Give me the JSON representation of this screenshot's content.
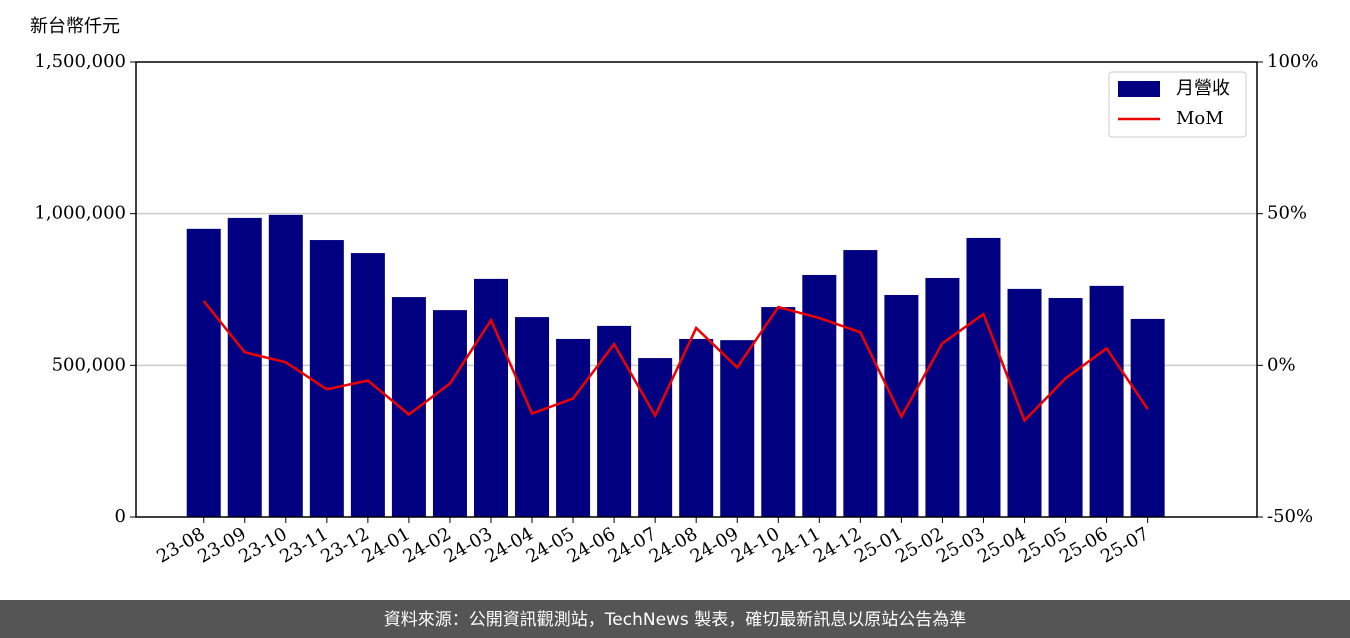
{
  "chart_data": {
    "type": "bar",
    "y_label": "新台幣仟元",
    "categories": [
      "23-08",
      "23-09",
      "23-10",
      "23-11",
      "23-12",
      "24-01",
      "24-02",
      "24-03",
      "24-04",
      "24-05",
      "24-06",
      "24-07",
      "24-08",
      "24-09",
      "24-10",
      "24-11",
      "24-12",
      "25-01",
      "25-02",
      "25-03",
      "25-04",
      "25-05",
      "25-06",
      "25-07"
    ],
    "series": [
      {
        "name": "月營收",
        "type": "bar",
        "color": "#000080",
        "values": [
          950000,
          986000,
          996000,
          913000,
          870000,
          725000,
          682000,
          785000,
          659000,
          587000,
          630000,
          524000,
          587000,
          583000,
          692000,
          798000,
          880000,
          732000,
          788000,
          920000,
          752000,
          722000,
          762000,
          653000
        ]
      },
      {
        "name": "MoM",
        "type": "line",
        "axis": "y2",
        "color": "#ee0000",
        "values": [
          21.2,
          4.3,
          1.0,
          -7.9,
          -5.0,
          -16.2,
          -6.0,
          14.9,
          -15.9,
          -10.9,
          7.0,
          -16.6,
          12.3,
          -0.7,
          19.2,
          15.6,
          10.9,
          -16.9,
          7.3,
          16.9,
          -18.2,
          -4.3,
          5.6,
          -14.4
        ]
      }
    ],
    "ylim": [
      0,
      1500000
    ],
    "yticks": [
      0,
      {
        "value": 500000,
        "label": "500,000"
      },
      {
        "value": 1000000,
        "label": "1,000,000"
      },
      {
        "value": 1500000,
        "label": "1,500,000"
      }
    ],
    "y2lim": [
      -50,
      100
    ],
    "y2ticks": [
      {
        "value": -50,
        "label": "-50%"
      },
      {
        "value": 0,
        "label": "0%"
      },
      {
        "value": 50,
        "label": "50%"
      },
      {
        "value": 100,
        "label": "100%"
      }
    ],
    "grid": true,
    "legend": "upper right",
    "footer": "資料來源：公開資訊觀測站，TechNews 製表，確切最新訊息以原站公告為準"
  }
}
